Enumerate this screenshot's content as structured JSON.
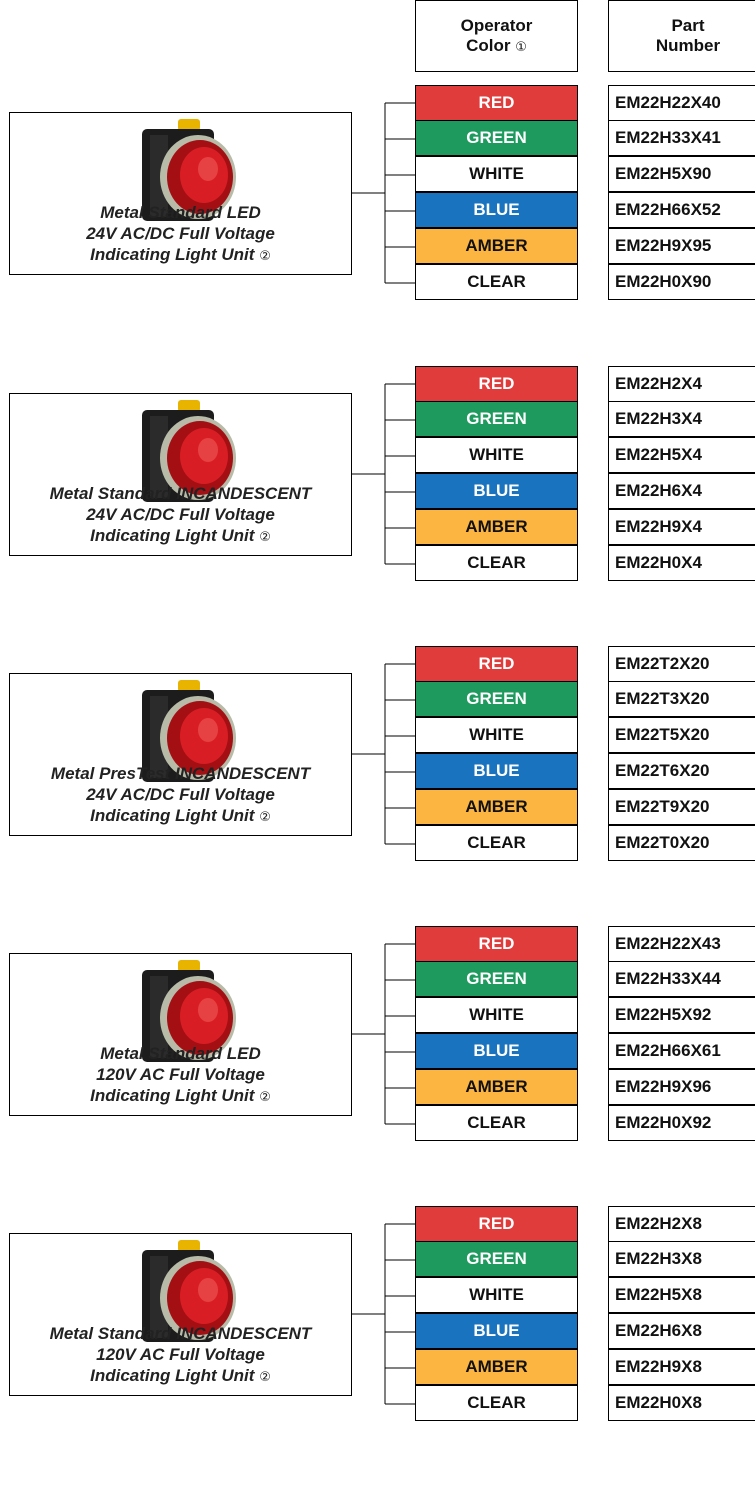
{
  "header": {
    "operator_color_line1": "Operator",
    "operator_color_line2": "Color",
    "operator_color_note": "①",
    "part_number_line1": "Part",
    "part_number_line2": "Number"
  },
  "groups": [
    {
      "label": [
        "Metal Standard LED",
        "24V AC/DC Full Voltage",
        "Indicating Light Unit"
      ],
      "note": "②",
      "rows": [
        [
          "RED",
          "EM22H22X40"
        ],
        [
          "GREEN",
          "EM22H33X41"
        ],
        [
          "WHITE",
          "EM22H5X90"
        ],
        [
          "BLUE",
          "EM22H66X52"
        ],
        [
          "AMBER",
          "EM22H9X95"
        ],
        [
          "CLEAR",
          "EM22H0X90"
        ]
      ]
    },
    {
      "label": [
        "Metal Standard INCANDESCENT",
        "24V AC/DC Full Voltage",
        "Indicating Light Unit"
      ],
      "note": "②",
      "rows": [
        [
          "RED",
          "EM22H2X4"
        ],
        [
          "GREEN",
          "EM22H3X4"
        ],
        [
          "WHITE",
          "EM22H5X4"
        ],
        [
          "BLUE",
          "EM22H6X4"
        ],
        [
          "AMBER",
          "EM22H9X4"
        ],
        [
          "CLEAR",
          "EM22H0X4"
        ]
      ]
    },
    {
      "label": [
        "Metal PresTest INCANDESCENT",
        "24V AC/DC Full Voltage",
        "Indicating Light Unit"
      ],
      "note": "②",
      "rows": [
        [
          "RED",
          "EM22T2X20"
        ],
        [
          "GREEN",
          "EM22T3X20"
        ],
        [
          "WHITE",
          "EM22T5X20"
        ],
        [
          "BLUE",
          "EM22T6X20"
        ],
        [
          "AMBER",
          "EM22T9X20"
        ],
        [
          "CLEAR",
          "EM22T0X20"
        ]
      ]
    },
    {
      "label": [
        "Metal Standard LED",
        "120V AC Full Voltage",
        "Indicating Light Unit"
      ],
      "note": "②",
      "rows": [
        [
          "RED",
          "EM22H22X43"
        ],
        [
          "GREEN",
          "EM22H33X44"
        ],
        [
          "WHITE",
          "EM22H5X92"
        ],
        [
          "BLUE",
          "EM22H66X61"
        ],
        [
          "AMBER",
          "EM22H9X96"
        ],
        [
          "CLEAR",
          "EM22H0X92"
        ]
      ]
    },
    {
      "label": [
        "Metal Standard INCANDESCENT",
        "120V AC Full Voltage",
        "Indicating Light Unit"
      ],
      "note": "②",
      "rows": [
        [
          "RED",
          "EM22H2X8"
        ],
        [
          "GREEN",
          "EM22H3X8"
        ],
        [
          "WHITE",
          "EM22H5X8"
        ],
        [
          "BLUE",
          "EM22H6X8"
        ],
        [
          "AMBER",
          "EM22H9X8"
        ],
        [
          "CLEAR",
          "EM22H0X8"
        ]
      ]
    }
  ]
}
